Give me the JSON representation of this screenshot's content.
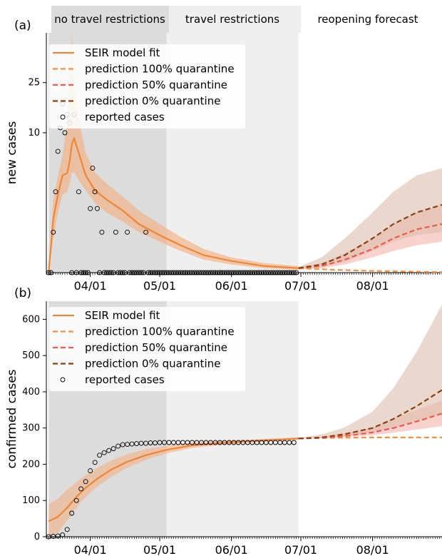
{
  "figure": {
    "panel_a_label": "(a)",
    "panel_b_label": "(b)",
    "phases": [
      "no travel restrictions",
      "travel restrictions",
      "reopening forecast"
    ]
  },
  "colors": {
    "fit": "#ef8535",
    "fit_band": "#f3b183",
    "pred100": "#f5923e",
    "pred50": "#ec5a4b",
    "pred0": "#8c3f11",
    "pred_band_50": "#f5b4ae",
    "pred_band_0": "#dcbcac",
    "phase_gray_dark": "#dcdcdc",
    "phase_gray_light": "#efefef"
  },
  "chart_data": [
    {
      "type": "line",
      "panel": "a",
      "ylabel": "new cases",
      "xlabel": "",
      "yscale": "symlog",
      "ylim": [
        0,
        60
      ],
      "yticks": [
        10,
        25
      ],
      "x_tick_labels": [
        "04/01",
        "05/01",
        "06/01",
        "07/01",
        "08/01"
      ],
      "x_ticks": [
        "2020-04-01",
        "2020-05-01",
        "2020-06-01",
        "2020-07-01",
        "2020-08-01"
      ],
      "xlim": [
        "2020-03-13",
        "2020-08-31"
      ],
      "phase_boundaries": [
        "2020-03-14",
        "2020-05-04",
        "2020-06-30"
      ],
      "legend_position": "top-left",
      "legend": [
        "SEIR model fit",
        "prediction 100% quarantine",
        "prediction 50% quarantine",
        "prediction 0% quarantine",
        "reported cases"
      ],
      "series": [
        {
          "name": "SEIR model fit",
          "style": "solid",
          "x": [
            "2020-03-14",
            "2020-03-16",
            "2020-03-18",
            "2020-03-20",
            "2020-03-22",
            "2020-03-23",
            "2020-03-24",
            "2020-03-25",
            "2020-03-27",
            "2020-03-30",
            "2020-04-03",
            "2020-04-08",
            "2020-04-15",
            "2020-04-22",
            "2020-05-01",
            "2020-05-10",
            "2020-05-20",
            "2020-06-01",
            "2020-06-15",
            "2020-06-30"
          ],
          "y": [
            0,
            1.5,
            2.8,
            4.3,
            4.5,
            5.6,
            8.0,
            9.0,
            6.8,
            4.3,
            3.1,
            2.5,
            1.9,
            1.3,
            0.9,
            0.6,
            0.35,
            0.22,
            0.12,
            0.08
          ]
        },
        {
          "name": "SEIR model fit band",
          "style": "band",
          "x": [
            "2020-03-14",
            "2020-03-16",
            "2020-03-18",
            "2020-03-20",
            "2020-03-22",
            "2020-03-23",
            "2020-03-24",
            "2020-03-25",
            "2020-03-27",
            "2020-03-30",
            "2020-04-03",
            "2020-04-08",
            "2020-04-15",
            "2020-04-22",
            "2020-05-01",
            "2020-05-10",
            "2020-05-20",
            "2020-06-01",
            "2020-06-15",
            "2020-06-30"
          ],
          "lower": [
            0,
            0.8,
            1.8,
            2.8,
            3.0,
            3.6,
            4.5,
            4.6,
            3.9,
            3.1,
            2.3,
            1.8,
            1.4,
            1.0,
            0.7,
            0.45,
            0.25,
            0.15,
            0.08,
            0.05
          ],
          "upper": [
            0,
            2.5,
            4.2,
            6.5,
            12.0,
            25.0,
            60.0,
            25.0,
            13.0,
            6.8,
            4.6,
            3.6,
            2.7,
            1.9,
            1.3,
            0.85,
            0.5,
            0.3,
            0.18,
            0.12
          ]
        },
        {
          "name": "prediction 100% quarantine",
          "style": "dashed",
          "x": [
            "2020-06-30",
            "2020-07-15",
            "2020-08-01",
            "2020-08-15",
            "2020-08-31"
          ],
          "y": [
            0.08,
            0.05,
            0.03,
            0.02,
            0.01
          ]
        },
        {
          "name": "prediction 50% quarantine",
          "style": "dashed",
          "x": [
            "2020-06-30",
            "2020-07-10",
            "2020-07-20",
            "2020-08-01",
            "2020-08-10",
            "2020-08-20",
            "2020-08-31"
          ],
          "y": [
            0.08,
            0.12,
            0.25,
            0.5,
            0.8,
            1.1,
            1.3
          ],
          "band_lower": [
            0.06,
            0.08,
            0.15,
            0.3,
            0.45,
            0.6,
            0.7
          ],
          "band_upper": [
            0.1,
            0.18,
            0.4,
            0.8,
            1.3,
            1.8,
            2.2
          ]
        },
        {
          "name": "prediction 0% quarantine",
          "style": "dashed",
          "x": [
            "2020-06-30",
            "2020-07-10",
            "2020-07-20",
            "2020-08-01",
            "2020-08-10",
            "2020-08-20",
            "2020-08-31"
          ],
          "y": [
            0.08,
            0.15,
            0.35,
            0.8,
            1.3,
            1.8,
            2.2
          ],
          "band_lower": [
            0.06,
            0.1,
            0.2,
            0.45,
            0.7,
            0.9,
            1.0
          ],
          "band_upper": [
            0.1,
            0.3,
            0.8,
            1.8,
            3.0,
            4.3,
            5.0
          ]
        },
        {
          "name": "reported cases",
          "style": "markers",
          "x": [
            "2020-03-14",
            "2020-03-15",
            "2020-03-16",
            "2020-03-17",
            "2020-03-18",
            "2020-03-19",
            "2020-03-20",
            "2020-03-21",
            "2020-03-22",
            "2020-03-23",
            "2020-03-24",
            "2020-03-25",
            "2020-03-26",
            "2020-03-27",
            "2020-03-28",
            "2020-03-29",
            "2020-03-30",
            "2020-03-31",
            "2020-04-01",
            "2020-04-02",
            "2020-04-03",
            "2020-04-04",
            "2020-04-05",
            "2020-04-06",
            "2020-04-07",
            "2020-04-08",
            "2020-04-09",
            "2020-04-10",
            "2020-04-11",
            "2020-04-12",
            "2020-04-13",
            "2020-04-14",
            "2020-04-15",
            "2020-04-16",
            "2020-04-17",
            "2020-04-18",
            "2020-04-19",
            "2020-04-20",
            "2020-04-21",
            "2020-04-22",
            "2020-04-23",
            "2020-04-24",
            "2020-04-25",
            "2020-04-26",
            "2020-04-27",
            "2020-04-28",
            "2020-04-29",
            "2020-04-30",
            "2020-05-01",
            "2020-05-02",
            "2020-05-03",
            "2020-05-04",
            "2020-05-05",
            "2020-05-06",
            "2020-05-07",
            "2020-05-08",
            "2020-05-09",
            "2020-05-10",
            "2020-05-11",
            "2020-05-12",
            "2020-05-13",
            "2020-05-14",
            "2020-05-15",
            "2020-05-16",
            "2020-05-17",
            "2020-05-18",
            "2020-05-19",
            "2020-05-20",
            "2020-05-21",
            "2020-05-22",
            "2020-05-23",
            "2020-05-24",
            "2020-05-25",
            "2020-05-26",
            "2020-05-27",
            "2020-05-28",
            "2020-05-29",
            "2020-05-30",
            "2020-05-31",
            "2020-06-01",
            "2020-06-02",
            "2020-06-03",
            "2020-06-04",
            "2020-06-05",
            "2020-06-06",
            "2020-06-07",
            "2020-06-08",
            "2020-06-09",
            "2020-06-10",
            "2020-06-11",
            "2020-06-12",
            "2020-06-13",
            "2020-06-14",
            "2020-06-15",
            "2020-06-16",
            "2020-06-17",
            "2020-06-18",
            "2020-06-19",
            "2020-06-20",
            "2020-06-21",
            "2020-06-22",
            "2020-06-23",
            "2020-06-24",
            "2020-06-25",
            "2020-06-26",
            "2020-06-27",
            "2020-06-28",
            "2020-06-29"
          ],
          "y": [
            0,
            0,
            1,
            3,
            7,
            11,
            17,
            10,
            14,
            12,
            0,
            14,
            0,
            3,
            0,
            0,
            0,
            0,
            2,
            5,
            3,
            2,
            0,
            1,
            0,
            0,
            0,
            0,
            0,
            1,
            0,
            0,
            0,
            0,
            1,
            0,
            0,
            0,
            0,
            0,
            0,
            0,
            1,
            0,
            0,
            0,
            0,
            0,
            0,
            0,
            0,
            0,
            0,
            0,
            0,
            0,
            0,
            0,
            0,
            0,
            0,
            0,
            0,
            0,
            0,
            0,
            0,
            0,
            0,
            0,
            0,
            0,
            0,
            0,
            0,
            0,
            0,
            0,
            0,
            0,
            0,
            0,
            0,
            0,
            0,
            0,
            0,
            0,
            0,
            0,
            0,
            0,
            0,
            0,
            0,
            0,
            0,
            0,
            0,
            0,
            0,
            0,
            0,
            0,
            0,
            0,
            0,
            0
          ]
        }
      ]
    },
    {
      "type": "line",
      "panel": "b",
      "ylabel": "confirmed cases",
      "xlabel": "",
      "ylim": [
        0,
        650
      ],
      "yticks": [
        0,
        100,
        200,
        300,
        400,
        500,
        600
      ],
      "x_tick_labels": [
        "04/01",
        "05/01",
        "06/01",
        "07/01",
        "08/01"
      ],
      "x_ticks": [
        "2020-04-01",
        "2020-05-01",
        "2020-06-01",
        "2020-07-01",
        "2020-08-01"
      ],
      "xlim": [
        "2020-03-13",
        "2020-08-31"
      ],
      "phase_boundaries": [
        "2020-03-14",
        "2020-05-04",
        "2020-06-30"
      ],
      "legend_position": "top-left",
      "legend": [
        "SEIR model fit",
        "prediction 100% quarantine",
        "prediction 50% quarantine",
        "prediction 0% quarantine",
        "reported cases"
      ],
      "series": [
        {
          "name": "SEIR model fit",
          "style": "solid",
          "x": [
            "2020-03-14",
            "2020-03-18",
            "2020-03-22",
            "2020-03-26",
            "2020-03-30",
            "2020-04-04",
            "2020-04-10",
            "2020-04-17",
            "2020-04-25",
            "2020-05-04",
            "2020-05-15",
            "2020-05-25",
            "2020-06-05",
            "2020-06-15",
            "2020-06-30"
          ],
          "y": [
            43,
            55,
            80,
            110,
            135,
            160,
            185,
            207,
            225,
            240,
            252,
            258,
            262,
            266,
            271
          ],
          "band_lower": [
            0,
            10,
            45,
            80,
            110,
            138,
            165,
            190,
            212,
            230,
            245,
            252,
            258,
            262,
            268
          ],
          "band_upper": [
            90,
            105,
            130,
            150,
            170,
            190,
            210,
            228,
            242,
            252,
            260,
            264,
            267,
            270,
            274
          ]
        },
        {
          "name": "prediction 100% quarantine",
          "style": "dashed",
          "x": [
            "2020-06-30",
            "2020-07-15",
            "2020-08-01",
            "2020-08-15",
            "2020-08-31"
          ],
          "y": [
            271,
            273,
            274,
            274,
            274
          ]
        },
        {
          "name": "prediction 50% quarantine",
          "style": "dashed",
          "x": [
            "2020-06-30",
            "2020-07-10",
            "2020-07-20",
            "2020-08-01",
            "2020-08-10",
            "2020-08-20",
            "2020-08-31"
          ],
          "y": [
            271,
            273,
            278,
            288,
            300,
            318,
            340
          ],
          "band_lower": [
            271,
            272,
            275,
            280,
            287,
            296,
            305
          ],
          "band_upper": [
            272,
            276,
            285,
            302,
            325,
            350,
            375
          ]
        },
        {
          "name": "prediction 0% quarantine",
          "style": "dashed",
          "x": [
            "2020-06-30",
            "2020-07-10",
            "2020-07-20",
            "2020-08-01",
            "2020-08-10",
            "2020-08-20",
            "2020-08-31"
          ],
          "y": [
            271,
            274,
            283,
            300,
            325,
            360,
            405
          ],
          "band_lower": [
            271,
            272,
            277,
            287,
            300,
            318,
            340
          ],
          "band_upper": [
            273,
            282,
            302,
            345,
            410,
            510,
            640
          ]
        },
        {
          "name": "reported cases",
          "style": "markers",
          "x": [
            "2020-03-14",
            "2020-03-16",
            "2020-03-18",
            "2020-03-20",
            "2020-03-22",
            "2020-03-24",
            "2020-03-26",
            "2020-03-28",
            "2020-03-30",
            "2020-04-01",
            "2020-04-03",
            "2020-04-05",
            "2020-04-07",
            "2020-04-09",
            "2020-04-11",
            "2020-04-13",
            "2020-04-15",
            "2020-04-17",
            "2020-04-19",
            "2020-04-21",
            "2020-04-23",
            "2020-04-25",
            "2020-04-27",
            "2020-04-29",
            "2020-05-01",
            "2020-05-03",
            "2020-05-05",
            "2020-05-07",
            "2020-05-09",
            "2020-05-11",
            "2020-05-13",
            "2020-05-15",
            "2020-05-17",
            "2020-05-19",
            "2020-05-21",
            "2020-05-23",
            "2020-05-25",
            "2020-05-27",
            "2020-05-29",
            "2020-05-31",
            "2020-06-02",
            "2020-06-04",
            "2020-06-06",
            "2020-06-08",
            "2020-06-10",
            "2020-06-12",
            "2020-06-14",
            "2020-06-16",
            "2020-06-18",
            "2020-06-20",
            "2020-06-22",
            "2020-06-24",
            "2020-06-26",
            "2020-06-28"
          ],
          "y": [
            0,
            1,
            2,
            5,
            20,
            65,
            100,
            132,
            152,
            182,
            205,
            225,
            232,
            238,
            243,
            250,
            254,
            255,
            256,
            257,
            258,
            258,
            259,
            259,
            260,
            260,
            260,
            260,
            260,
            260,
            260,
            260,
            260,
            260,
            260,
            260,
            260,
            260,
            260,
            260,
            260,
            260,
            260,
            260,
            260,
            260,
            260,
            260,
            260,
            260,
            260,
            260,
            260,
            260
          ]
        }
      ]
    }
  ]
}
